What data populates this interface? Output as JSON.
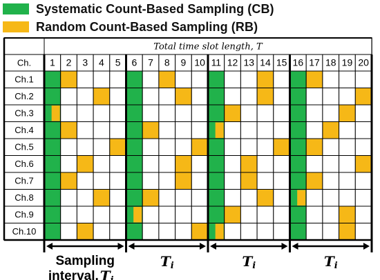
{
  "legend": [
    {
      "label": "Systematic Count-Based Sampling (CB)",
      "color": "#21b24b"
    },
    {
      "label": "Random Count-Based  Sampling (RB)",
      "color": "#f6b817"
    }
  ],
  "table": {
    "title": "Total time slot length, T",
    "corner_label": "Ch.",
    "slots": [
      "1",
      "2",
      "3",
      "4",
      "5",
      "6",
      "7",
      "8",
      "9",
      "10",
      "11",
      "12",
      "13",
      "14",
      "15",
      "16",
      "17",
      "18",
      "19",
      "20"
    ],
    "channels": [
      "Ch.1",
      "Ch.2",
      "Ch.3",
      "Ch.4",
      "Ch.5",
      "Ch.6",
      "Ch.7",
      "Ch.8",
      "Ch.9",
      "Ch.10"
    ],
    "rb_slots": [
      [
        2,
        8,
        14,
        17
      ],
      [
        4,
        9,
        14,
        20
      ],
      [
        1,
        12,
        19
      ],
      [
        2,
        7,
        11,
        18
      ],
      [
        5,
        10,
        15,
        17
      ],
      [
        3,
        9,
        13,
        20
      ],
      [
        2,
        9,
        13,
        17
      ],
      [
        4,
        7,
        14,
        16
      ],
      [
        6,
        12,
        19
      ],
      [
        3,
        10,
        11,
        19
      ]
    ],
    "partial_slots": [
      [],
      [],
      [
        1
      ],
      [
        11
      ],
      [],
      [],
      [],
      [
        16
      ],
      [
        6
      ],
      [
        11
      ]
    ],
    "period_count": 4,
    "period_length": 5
  },
  "intervals": {
    "first_label_line1": "Sampling",
    "first_label_line2": "interval,",
    "symbol": "T",
    "subscript": "i"
  },
  "colors": {
    "cb": "#21b24b",
    "rb": "#f6b817",
    "line": "#000000"
  }
}
